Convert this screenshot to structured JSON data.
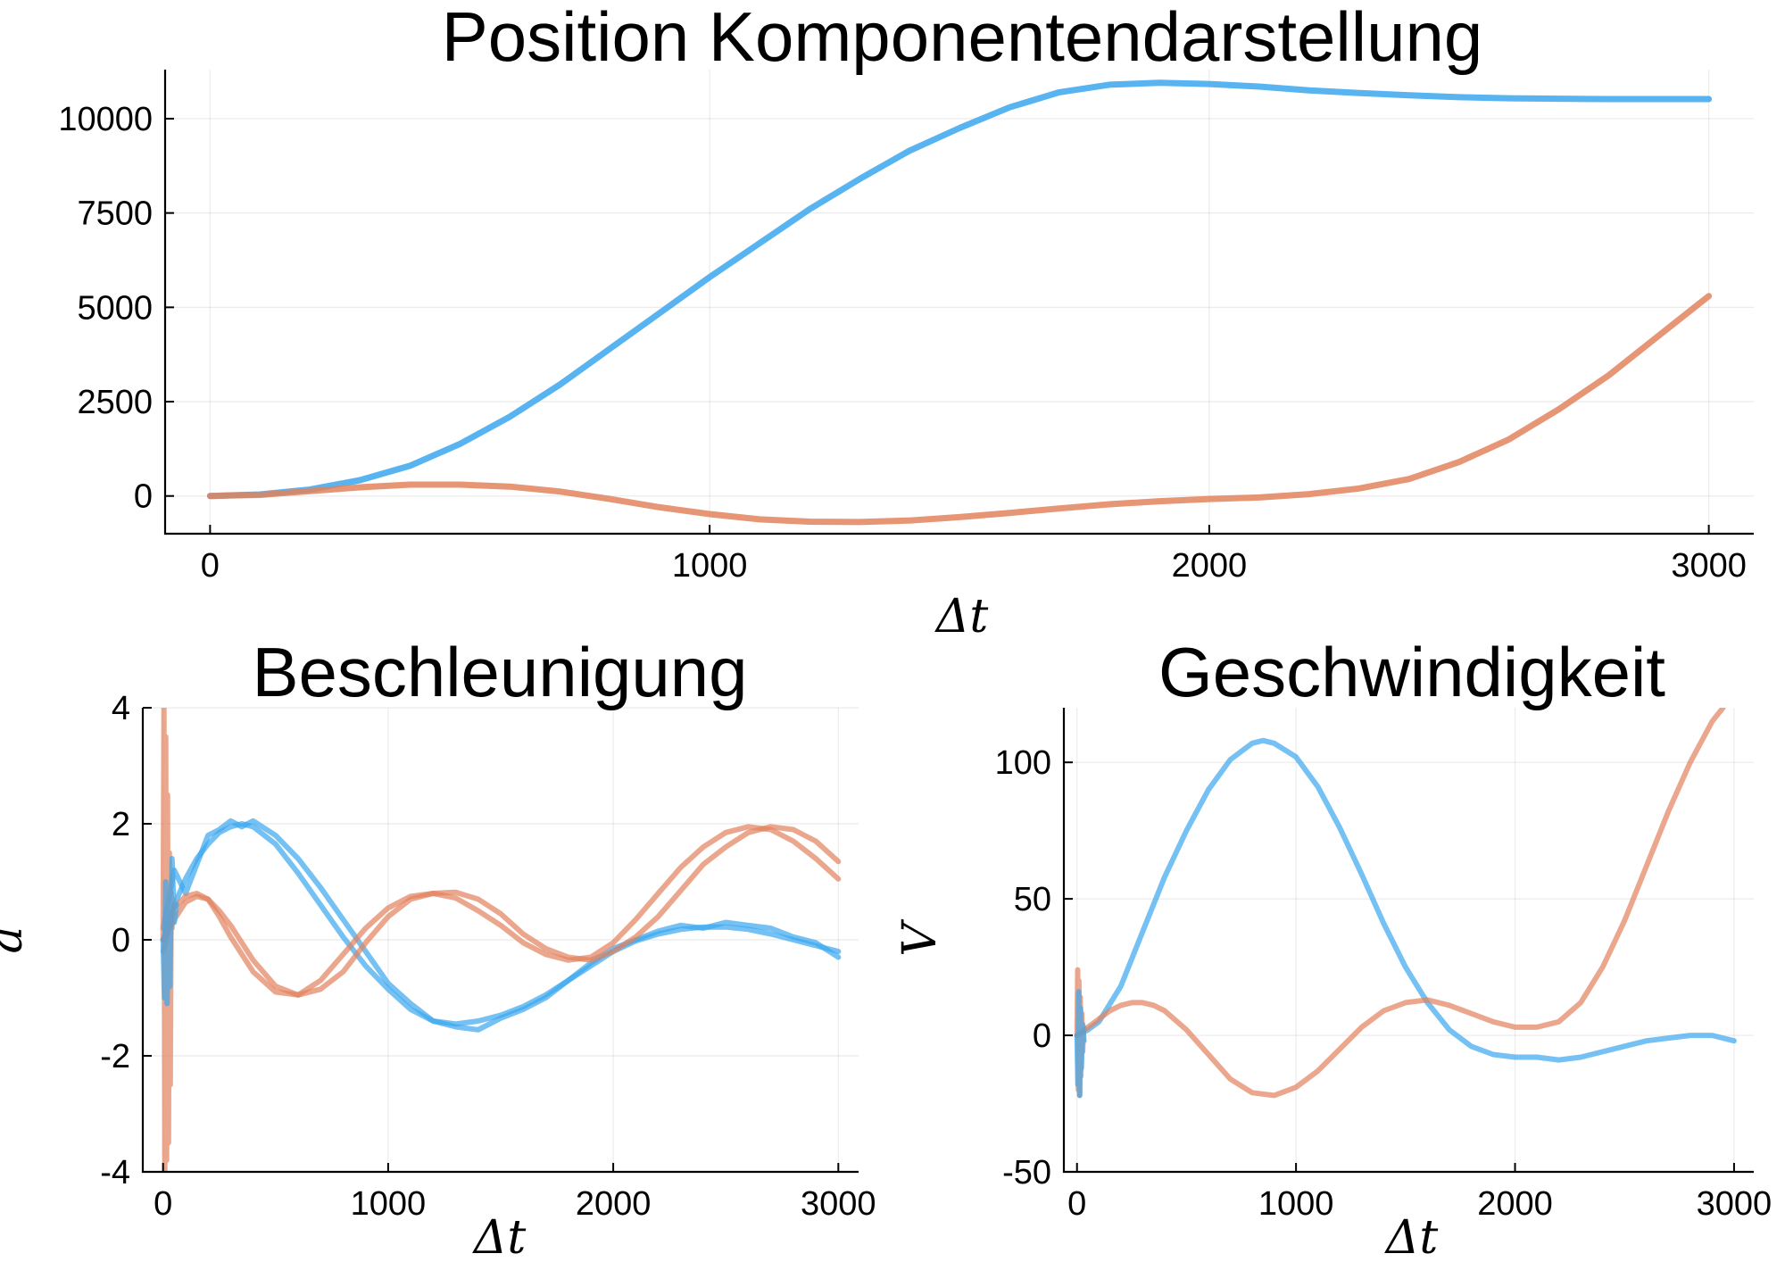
{
  "colors": {
    "blue": "#3ba6ee",
    "orange": "#e2825d"
  },
  "chart_data": [
    {
      "id": "position",
      "type": "line",
      "title": "Position Komponentendarstellung",
      "xlabel": "Δt",
      "ylabel": "",
      "xlim": [
        -90,
        3090
      ],
      "ylim": [
        -1000,
        11300
      ],
      "xticks": [
        "0",
        "1000",
        "2000",
        "3000"
      ],
      "yticks": [
        "0",
        "2500",
        "5000",
        "7500",
        "10000"
      ],
      "grid": true,
      "legend": "none",
      "series": [
        {
          "color": "blue",
          "x": [
            0,
            100,
            200,
            300,
            400,
            500,
            600,
            700,
            800,
            900,
            1000,
            1100,
            1200,
            1300,
            1400,
            1500,
            1600,
            1700,
            1800,
            1900,
            2000,
            2100,
            2200,
            2300,
            2400,
            2500,
            2600,
            2700,
            2800,
            2900,
            3000
          ],
          "values": [
            0,
            40,
            170,
            420,
            800,
            1380,
            2100,
            2950,
            3900,
            4850,
            5800,
            6700,
            7600,
            8400,
            9150,
            9750,
            10300,
            10700,
            10900,
            10950,
            10920,
            10850,
            10750,
            10680,
            10620,
            10570,
            10540,
            10530,
            10520,
            10520,
            10520
          ]
        },
        {
          "color": "orange",
          "x": [
            0,
            100,
            200,
            300,
            400,
            500,
            600,
            700,
            800,
            900,
            1000,
            1100,
            1200,
            1300,
            1400,
            1500,
            1600,
            1700,
            1800,
            1900,
            2000,
            2100,
            2200,
            2300,
            2400,
            2500,
            2600,
            2700,
            2800,
            2900,
            3000
          ],
          "values": [
            0,
            30,
            130,
            230,
            300,
            300,
            250,
            120,
            -80,
            -300,
            -480,
            -620,
            -680,
            -690,
            -650,
            -560,
            -450,
            -330,
            -220,
            -140,
            -80,
            -40,
            50,
            200,
            450,
            900,
            1500,
            2300,
            3200,
            4250,
            5300
          ]
        }
      ]
    },
    {
      "id": "acceleration",
      "type": "line",
      "title": "Beschleunigung",
      "xlabel": "Δt",
      "ylabel": "a",
      "xlim": [
        -90,
        3090
      ],
      "ylim": [
        -4,
        4
      ],
      "xticks": [
        "0",
        "1000",
        "2000",
        "3000"
      ],
      "yticks": [
        "-4",
        "-2",
        "0",
        "2",
        "4"
      ],
      "grid": true,
      "legend": "none",
      "series": [
        {
          "color": "blue",
          "x": [
            0,
            50,
            100,
            150,
            200,
            250,
            300,
            350,
            400,
            500,
            600,
            700,
            800,
            900,
            1000,
            1100,
            1200,
            1300,
            1400,
            1500,
            1600,
            1700,
            1800,
            1900,
            2000,
            2100,
            2200,
            2300,
            2400,
            2500,
            2600,
            2700,
            2800,
            2900,
            3000
          ],
          "values": [
            0,
            0.6,
            1.05,
            1.4,
            1.65,
            1.85,
            1.95,
            2.0,
            1.95,
            1.65,
            1.15,
            0.6,
            0.05,
            -0.45,
            -0.85,
            -1.2,
            -1.4,
            -1.45,
            -1.4,
            -1.3,
            -1.15,
            -0.95,
            -0.7,
            -0.45,
            -0.2,
            -0.02,
            0.1,
            0.18,
            0.22,
            0.22,
            0.18,
            0.1,
            0.0,
            -0.1,
            -0.2
          ]
        },
        {
          "color": "blue",
          "x": [
            0,
            50,
            100,
            150,
            200,
            250,
            300,
            350,
            400,
            500,
            600,
            700,
            800,
            900,
            1000,
            1100,
            1200,
            1300,
            1400,
            1500,
            1600,
            1700,
            1800,
            1900,
            2000,
            2100,
            2200,
            2300,
            2400,
            2500,
            2600,
            2700,
            2800,
            2900,
            3000
          ],
          "values": [
            0.2,
            1.2,
            0.8,
            1.3,
            1.8,
            1.9,
            2.05,
            1.95,
            2.05,
            1.8,
            1.4,
            0.9,
            0.35,
            -0.2,
            -0.75,
            -1.1,
            -1.4,
            -1.5,
            -1.55,
            -1.35,
            -1.2,
            -1.0,
            -0.7,
            -0.4,
            -0.15,
            0.0,
            0.15,
            0.25,
            0.2,
            0.3,
            0.25,
            0.2,
            0.05,
            -0.05,
            -0.3
          ]
        },
        {
          "color": "orange",
          "x": [
            0,
            50,
            100,
            150,
            200,
            250,
            300,
            400,
            500,
            600,
            700,
            800,
            900,
            1000,
            1100,
            1200,
            1300,
            1400,
            1500,
            1600,
            1700,
            1800,
            1900,
            2000,
            2100,
            2200,
            2300,
            2400,
            2500,
            2600,
            2700,
            2800,
            2900,
            3000
          ],
          "values": [
            0,
            0.35,
            0.65,
            0.75,
            0.7,
            0.5,
            0.25,
            -0.35,
            -0.8,
            -0.95,
            -0.7,
            -0.25,
            0.2,
            0.55,
            0.75,
            0.8,
            0.72,
            0.5,
            0.25,
            -0.05,
            -0.25,
            -0.35,
            -0.3,
            -0.05,
            0.35,
            0.8,
            1.25,
            1.6,
            1.85,
            1.95,
            1.9,
            1.7,
            1.4,
            1.05
          ]
        },
        {
          "color": "orange",
          "x": [
            0,
            50,
            100,
            150,
            200,
            250,
            300,
            400,
            500,
            600,
            700,
            800,
            900,
            1000,
            1100,
            1200,
            1300,
            1400,
            1500,
            1600,
            1700,
            1800,
            1900,
            2000,
            2100,
            2200,
            2300,
            2400,
            2500,
            2600,
            2700,
            2800,
            2900,
            3000
          ],
          "values": [
            -0.2,
            0.55,
            0.75,
            0.8,
            0.7,
            0.4,
            0.05,
            -0.55,
            -0.9,
            -0.95,
            -0.85,
            -0.55,
            -0.05,
            0.4,
            0.7,
            0.8,
            0.82,
            0.7,
            0.45,
            0.1,
            -0.15,
            -0.3,
            -0.35,
            -0.2,
            0.05,
            0.4,
            0.85,
            1.3,
            1.6,
            1.85,
            1.95,
            1.9,
            1.7,
            1.35
          ]
        },
        {
          "color": "orange",
          "x": [
            0,
            4,
            8,
            12,
            16,
            20,
            24,
            28,
            32,
            36,
            40
          ],
          "values": [
            0,
            4,
            -4,
            3.5,
            -3.8,
            2.5,
            -3.5,
            1.5,
            -2.5,
            0.8,
            0.2
          ]
        },
        {
          "color": "blue",
          "x": [
            0,
            6,
            12,
            18,
            24,
            30,
            40,
            50,
            60
          ],
          "values": [
            0,
            -1,
            1,
            -1.1,
            0.5,
            -0.8,
            1.4,
            0.3,
            0.6
          ]
        }
      ]
    },
    {
      "id": "velocity",
      "type": "line",
      "title": "Geschwindigkeit",
      "xlabel": "Δt",
      "ylabel": "V",
      "xlim": [
        -60,
        3090
      ],
      "ylim": [
        -50,
        120
      ],
      "xticks": [
        "0",
        "1000",
        "2000",
        "3000"
      ],
      "yticks": [
        "-50",
        "0",
        "50",
        "100"
      ],
      "grid": true,
      "legend": "none",
      "series": [
        {
          "color": "blue",
          "x": [
            0,
            50,
            100,
            200,
            300,
            400,
            500,
            600,
            700,
            800,
            850,
            900,
            1000,
            1100,
            1200,
            1300,
            1400,
            1500,
            1600,
            1700,
            1800,
            1900,
            2000,
            2100,
            2200,
            2300,
            2400,
            2500,
            2600,
            2700,
            2800,
            2900,
            3000
          ],
          "values": [
            0,
            2,
            5,
            18,
            38,
            58,
            75,
            90,
            101,
            107,
            108,
            107,
            102,
            91,
            76,
            59,
            41,
            25,
            12,
            2,
            -4,
            -7,
            -8,
            -8,
            -9,
            -8,
            -6,
            -4,
            -2,
            -1,
            0,
            0,
            -2
          ]
        },
        {
          "color": "orange",
          "x": [
            0,
            50,
            100,
            150,
            200,
            250,
            300,
            350,
            400,
            500,
            600,
            700,
            800,
            900,
            1000,
            1100,
            1200,
            1300,
            1400,
            1500,
            1600,
            1700,
            1800,
            1900,
            2000,
            2100,
            2200,
            2300,
            2400,
            2500,
            2600,
            2700,
            2800,
            2900,
            2950
          ],
          "values": [
            0,
            3,
            6,
            9,
            11,
            12,
            12,
            11,
            9,
            2,
            -7,
            -16,
            -21,
            -22,
            -19,
            -13,
            -5,
            3,
            9,
            12,
            13,
            11,
            8,
            5,
            3,
            3,
            5,
            12,
            25,
            42,
            62,
            82,
            100,
            115,
            120
          ]
        },
        {
          "color": "orange",
          "x": [
            0,
            3,
            6,
            9,
            12,
            15,
            18,
            22,
            26,
            30
          ],
          "values": [
            0,
            24,
            -20,
            20,
            -22,
            14,
            -15,
            8,
            -6,
            3
          ]
        },
        {
          "color": "blue",
          "x": [
            0,
            4,
            8,
            12,
            16,
            20,
            26,
            32
          ],
          "values": [
            0,
            -18,
            16,
            -22,
            10,
            -12,
            4,
            -2
          ]
        }
      ]
    }
  ]
}
